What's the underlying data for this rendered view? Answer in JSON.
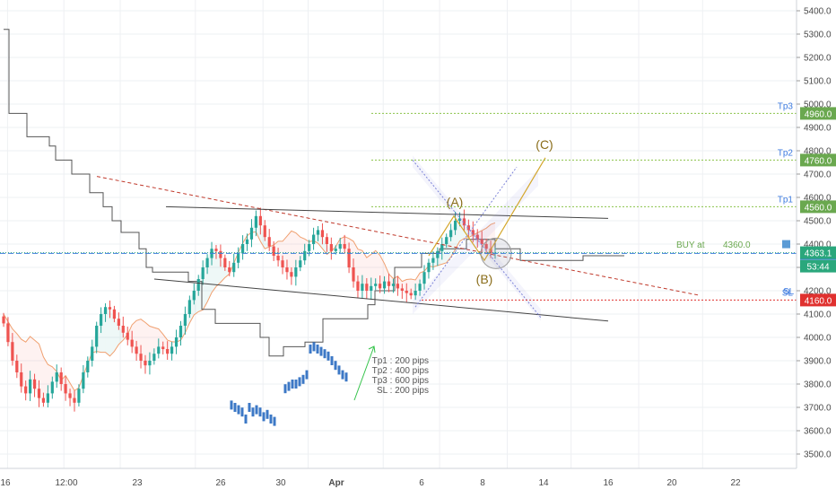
{
  "chart_data": {
    "type": "candlestick",
    "y_axis": {
      "min": 3400,
      "max": 5450,
      "ticks": [
        3500,
        3600,
        3700,
        3800,
        3900,
        4000,
        4100,
        4200,
        4300,
        4400,
        4500,
        4600,
        4700,
        4800,
        4900,
        5000,
        5100,
        5200,
        5300,
        5400
      ]
    },
    "x_axis": {
      "labels": [
        "16",
        "12:00",
        "23",
        "26",
        "30",
        "Apr",
        "6",
        "8",
        "14",
        "16",
        "20",
        "22"
      ],
      "positions": [
        0.5,
        2,
        3.5,
        5.5,
        7.3,
        8.5,
        10.5,
        12,
        13.8,
        15.5,
        17.3,
        19
      ],
      "range": [
        0.3,
        21.5
      ]
    },
    "grid": true,
    "price_levels": [
      {
        "name": "Tp3",
        "value": 4960.0,
        "label": "4960.0",
        "color": "#6aa84f"
      },
      {
        "name": "Tp2",
        "value": 4760.0,
        "label": "4760.0",
        "color": "#6aa84f"
      },
      {
        "name": "Tp1",
        "value": 4560.0,
        "label": "4560.0",
        "color": "#6aa84f"
      },
      {
        "name": "BUY at",
        "value": 4360.0,
        "label": "4360.0",
        "color": "#3d7be0"
      },
      {
        "name": "SL",
        "value": 4160.0,
        "label": "4160.0",
        "color": "#e0312f"
      }
    ],
    "last_price": {
      "value": 4363.1,
      "label": "4363.1",
      "countdown": "53:44",
      "color": "#2aa77c"
    },
    "buy_text": "BUY at",
    "buy_value": "4360.0",
    "sl_text": "SL",
    "wave_labels": [
      {
        "text": "(A)",
        "x": 12.05,
        "y": 4555
      },
      {
        "text": "(B)",
        "x": 12.95,
        "y": 4290
      },
      {
        "text": "(C)",
        "x": 14.85,
        "y": 4835
      }
    ],
    "notes": [
      "Tp1 : 200 pips",
      "Tp2 : 400 pips",
      "Tp3 : 600 pips",
      "SL : 200 pips"
    ],
    "close": [
      4060,
      3980,
      3900,
      3850,
      3790,
      3760,
      3820,
      3780,
      3740,
      3720,
      3760,
      3810,
      3850,
      3800,
      3760,
      3740,
      3720,
      3780,
      3850,
      3900,
      3960,
      4050,
      4100,
      4130,
      4120,
      4080,
      4050,
      4020,
      3990,
      3960,
      3930,
      3900,
      3880,
      3900,
      3930,
      3960,
      3950,
      3930,
      3960,
      4000,
      4050,
      4100,
      4160,
      4200,
      4250,
      4300,
      4340,
      4380,
      4370,
      4340,
      4300,
      4280,
      4320,
      4360,
      4400,
      4420,
      4470,
      4520,
      4480,
      4430,
      4390,
      4350,
      4330,
      4300,
      4280,
      4260,
      4300,
      4330,
      4370,
      4400,
      4440,
      4460,
      4430,
      4400,
      4370,
      4380,
      4400,
      4380,
      4300,
      4240,
      4200,
      4230,
      4200,
      4220,
      4230,
      4210,
      4240,
      4220,
      4230,
      4210,
      4200,
      4190,
      4180,
      4200,
      4230,
      4280,
      4320,
      4340,
      4370,
      4400,
      4430,
      4460,
      4500,
      4510,
      4480,
      4460,
      4440,
      4420,
      4400,
      4380,
      4360,
      4363
    ]
  }
}
